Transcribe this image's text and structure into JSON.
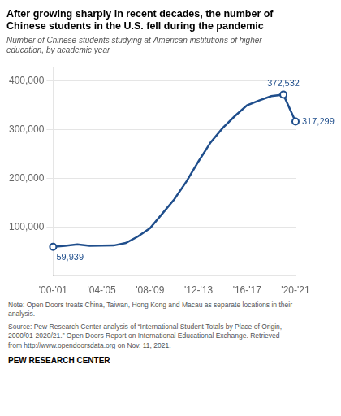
{
  "chart_data": {
    "type": "line",
    "title": "After growing sharply in recent decades, the number of\nChinese students in the U.S. fell during the pandemic",
    "subtitle": "Number of Chinese students studying at American institutions of higher\neducation, by academic year",
    "categories": [
      "'00-'01",
      null,
      null,
      null,
      "'04-'05",
      null,
      null,
      null,
      "'08-'09",
      null,
      null,
      null,
      "'12-'13",
      null,
      null,
      null,
      "'16-'17",
      null,
      null,
      null,
      "'20-'21"
    ],
    "values": [
      59939,
      61765,
      64757,
      61765,
      62523,
      62582,
      67723,
      81127,
      98235,
      127628,
      157558,
      194029,
      235597,
      274439,
      304040,
      328547,
      350755,
      360590,
      369548,
      372532,
      317299
    ],
    "value_labels": [
      "59,939",
      null,
      null,
      null,
      null,
      null,
      null,
      null,
      null,
      null,
      null,
      null,
      null,
      null,
      null,
      null,
      null,
      null,
      null,
      "372,532",
      "317,299"
    ],
    "color": "#1f4e8c",
    "marker": "circle",
    "ylim": [
      0,
      430000
    ],
    "yticks": [
      {
        "value": 100000,
        "label": "100,000"
      },
      {
        "value": 200000,
        "label": "200,000"
      },
      {
        "value": 300000,
        "label": "300,000"
      },
      {
        "value": 400000,
        "label": "400,000"
      }
    ],
    "grid": "y",
    "note": "Note: Open Doors treats China, Taiwan, Hong Kong and Macau as separate locations in their\nanalysis.",
    "source": "Source: Pew Research Center analysis of “International Student Totals by Place of Origin,\n2000/01-2020/21.” Open Doors Report on International Educational Exchange. Retrieved\nfrom http://www.opendoorsdata.org on Nov. 11, 2021.",
    "footer": "PEW RESEARCH CENTER"
  }
}
